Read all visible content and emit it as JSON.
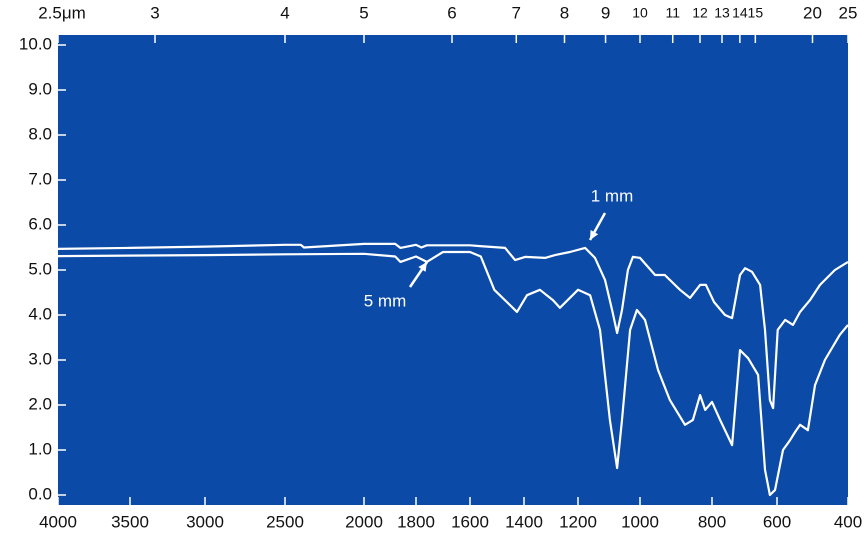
{
  "chart_data": {
    "type": "line",
    "xlim": [
      4000,
      400
    ],
    "ylim": [
      0,
      10
    ],
    "xticks": [
      4000,
      3500,
      3000,
      2500,
      2000,
      1800,
      1600,
      1400,
      1200,
      1000,
      800,
      600,
      400
    ],
    "yticks": [
      {
        "value": 0,
        "label": "0.0"
      },
      {
        "value": 1,
        "label": "1.0"
      },
      {
        "value": 2,
        "label": "2.0"
      },
      {
        "value": 3,
        "label": "3.0"
      },
      {
        "value": 4,
        "label": "4.0"
      },
      {
        "value": 5,
        "label": "5.0"
      },
      {
        "value": 6,
        "label": "6.0"
      },
      {
        "value": 7,
        "label": "7.0"
      },
      {
        "value": 8,
        "label": "8.0"
      },
      {
        "value": 9,
        "label": "9.0"
      },
      {
        "value": 10,
        "label": "10.0"
      }
    ],
    "x2ticks": [
      {
        "value": 2.5,
        "label": "2.5μm"
      },
      3,
      4,
      5,
      6,
      7,
      8,
      9,
      10,
      11,
      12,
      13,
      14,
      15,
      20,
      25
    ],
    "background": "#0b4aa6",
    "series": [
      {
        "name": "1 mm",
        "color": "#ffffff",
        "x": [
          4000,
          3500,
          3000,
          2500,
          2400,
          2380,
          2000,
          1880,
          1860,
          1800,
          1780,
          1760,
          1600,
          1563,
          1470,
          1433,
          1396,
          1322,
          1285,
          1230,
          1177,
          1145,
          1113,
          1090,
          1074,
          1058,
          1039,
          1023,
          1000,
          958,
          931,
          889,
          861,
          833,
          817,
          794,
          760,
          738,
          714,
          698,
          677,
          652,
          637,
          622,
          612,
          598,
          577,
          555,
          535,
          507,
          479,
          437,
          400
        ],
        "values": [
          5.47,
          5.49,
          5.52,
          5.56,
          5.56,
          5.5,
          5.58,
          5.58,
          5.49,
          5.56,
          5.5,
          5.55,
          5.55,
          5.53,
          5.49,
          5.22,
          5.29,
          5.27,
          5.33,
          5.4,
          5.49,
          5.27,
          4.78,
          4.11,
          3.6,
          4.11,
          5.0,
          5.29,
          5.27,
          4.89,
          4.89,
          4.56,
          4.38,
          4.67,
          4.67,
          4.29,
          4.0,
          3.93,
          4.89,
          5.04,
          4.96,
          4.67,
          3.67,
          2.11,
          1.93,
          3.67,
          3.89,
          3.78,
          4.07,
          4.33,
          4.67,
          5.0,
          5.18
        ]
      },
      {
        "name": "5 mm",
        "color": "#ffffff",
        "x": [
          4000,
          3000,
          2500,
          2000,
          1880,
          1860,
          1800,
          1760,
          1700,
          1600,
          1560,
          1510,
          1426,
          1389,
          1341,
          1293,
          1267,
          1200,
          1161,
          1129,
          1097,
          1074,
          1058,
          1032,
          1010,
          986,
          950,
          917,
          875,
          853,
          833,
          819,
          800,
          775,
          738,
          714,
          689,
          658,
          637,
          622,
          606,
          583,
          563,
          549,
          535,
          513,
          493,
          465,
          423,
          400
        ],
        "values": [
          5.31,
          5.33,
          5.35,
          5.36,
          5.3,
          5.18,
          5.3,
          5.18,
          5.4,
          5.4,
          5.3,
          4.56,
          4.07,
          4.44,
          4.56,
          4.33,
          4.16,
          4.56,
          4.44,
          3.67,
          1.67,
          0.6,
          1.67,
          3.67,
          4.11,
          3.89,
          2.78,
          2.11,
          1.56,
          1.67,
          2.22,
          1.89,
          2.07,
          1.67,
          1.11,
          3.22,
          3.04,
          2.67,
          0.56,
          0.0,
          0.11,
          1.0,
          1.22,
          1.4,
          1.56,
          1.44,
          2.44,
          3.0,
          3.56,
          3.78
        ]
      }
    ]
  }
}
